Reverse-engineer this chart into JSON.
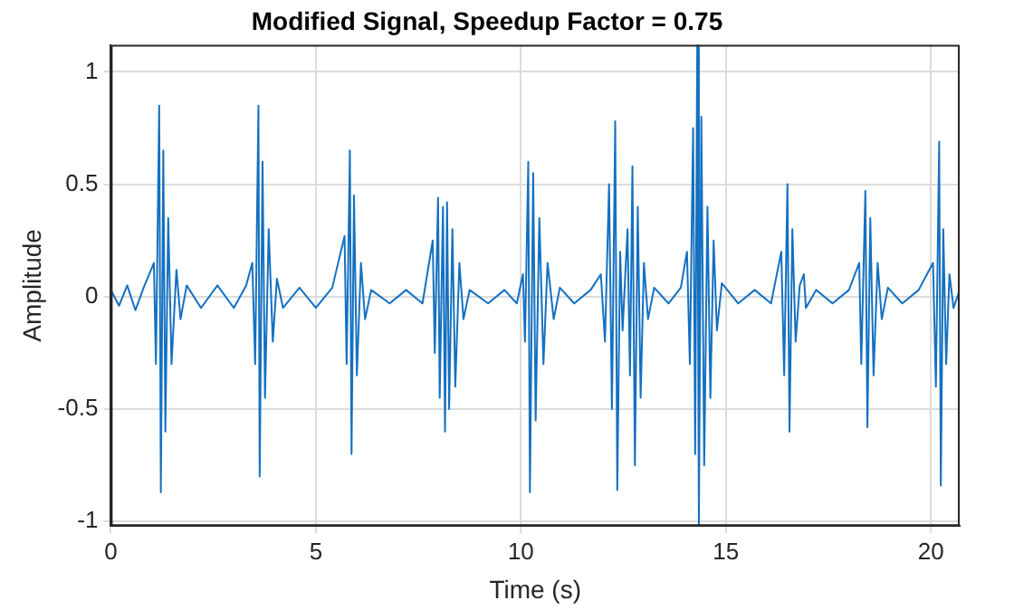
{
  "chart_data": {
    "type": "line",
    "title": "Modified Signal, Speedup Factor = 0.75",
    "xlabel": "Time (s)",
    "ylabel": "Amplitude",
    "xlim": [
      0,
      20.7
    ],
    "xticks": [
      0,
      5,
      10,
      15,
      20
    ],
    "ylim": [
      -1.02,
      1.12
    ],
    "yticks": [
      -1,
      -0.5,
      0,
      0.5,
      1
    ],
    "grid": true,
    "marker": "none",
    "line_style": "solid",
    "x": [
      0,
      0.2,
      0.4,
      0.6,
      0.8,
      1.05,
      1.1,
      1.18,
      1.22,
      1.28,
      1.33,
      1.4,
      1.48,
      1.6,
      1.7,
      1.85,
      2.2,
      2.6,
      3.0,
      3.3,
      3.45,
      3.52,
      3.6,
      3.63,
      3.7,
      3.76,
      3.85,
      3.95,
      4.05,
      4.2,
      4.6,
      5.0,
      5.4,
      5.7,
      5.75,
      5.83,
      5.87,
      5.93,
      6.0,
      6.1,
      6.2,
      6.35,
      6.8,
      7.2,
      7.6,
      7.85,
      7.9,
      7.98,
      8.02,
      8.1,
      8.15,
      8.2,
      8.25,
      8.33,
      8.4,
      8.5,
      8.6,
      8.75,
      9.2,
      9.6,
      9.9,
      10.05,
      10.1,
      10.18,
      10.22,
      10.3,
      10.36,
      10.45,
      10.55,
      10.65,
      10.8,
      10.95,
      11.3,
      11.7,
      11.95,
      12.05,
      12.15,
      12.22,
      12.3,
      12.35,
      12.42,
      12.48,
      12.6,
      12.66,
      12.72,
      12.78,
      12.85,
      12.92,
      13.0,
      13.1,
      13.25,
      13.6,
      13.9,
      14.05,
      14.12,
      14.2,
      14.25,
      14.3,
      14.34,
      14.4,
      14.47,
      14.55,
      14.62,
      14.7,
      14.78,
      14.9,
      15.3,
      15.7,
      16.1,
      16.35,
      16.42,
      16.5,
      16.55,
      16.62,
      16.7,
      16.8,
      16.9,
      16.95,
      17.2,
      17.6,
      18.0,
      18.25,
      18.3,
      18.4,
      18.45,
      18.52,
      18.6,
      18.7,
      18.8,
      18.95,
      19.3,
      19.7,
      20.05,
      20.12,
      20.2,
      20.24,
      20.3,
      20.37,
      20.45,
      20.55,
      20.7
    ],
    "series": [
      {
        "color": "#1470c0",
        "values": [
          0.03,
          -0.04,
          0.05,
          -0.06,
          0.04,
          0.15,
          -0.3,
          0.85,
          -0.87,
          0.65,
          -0.6,
          0.35,
          -0.3,
          0.12,
          -0.1,
          0.05,
          -0.05,
          0.05,
          -0.05,
          0.05,
          0.15,
          -0.3,
          0.85,
          -0.8,
          0.6,
          -0.45,
          0.3,
          -0.2,
          0.08,
          -0.05,
          0.04,
          -0.05,
          0.04,
          0.27,
          -0.3,
          0.65,
          -0.7,
          0.45,
          -0.35,
          0.15,
          -0.1,
          0.03,
          -0.03,
          0.03,
          -0.03,
          0.25,
          -0.25,
          0.44,
          -0.45,
          0.4,
          -0.6,
          0.42,
          -0.5,
          0.3,
          -0.4,
          0.15,
          -0.1,
          0.03,
          -0.03,
          0.03,
          -0.03,
          0.1,
          -0.2,
          0.6,
          -0.87,
          0.55,
          -0.55,
          0.35,
          -0.3,
          0.15,
          -0.1,
          0.04,
          -0.03,
          0.03,
          0.1,
          -0.2,
          0.5,
          -0.5,
          0.78,
          -0.86,
          0.2,
          -0.15,
          0.3,
          -0.35,
          0.58,
          -0.75,
          0.4,
          -0.45,
          0.15,
          -0.1,
          0.04,
          -0.03,
          0.04,
          0.2,
          -0.3,
          0.75,
          -0.7,
          1.12,
          -1.02,
          0.8,
          -0.75,
          0.4,
          -0.45,
          0.25,
          -0.15,
          0.06,
          -0.03,
          0.03,
          -0.03,
          0.2,
          -0.35,
          0.5,
          -0.6,
          0.3,
          -0.2,
          0.05,
          0.1,
          -0.05,
          0.03,
          -0.03,
          0.03,
          0.15,
          -0.3,
          0.47,
          -0.58,
          0.35,
          -0.35,
          0.15,
          -0.1,
          0.04,
          -0.03,
          0.03,
          0.15,
          -0.4,
          0.69,
          -0.84,
          0.3,
          -0.3,
          0.1,
          -0.05,
          0.03
        ]
      }
    ]
  }
}
